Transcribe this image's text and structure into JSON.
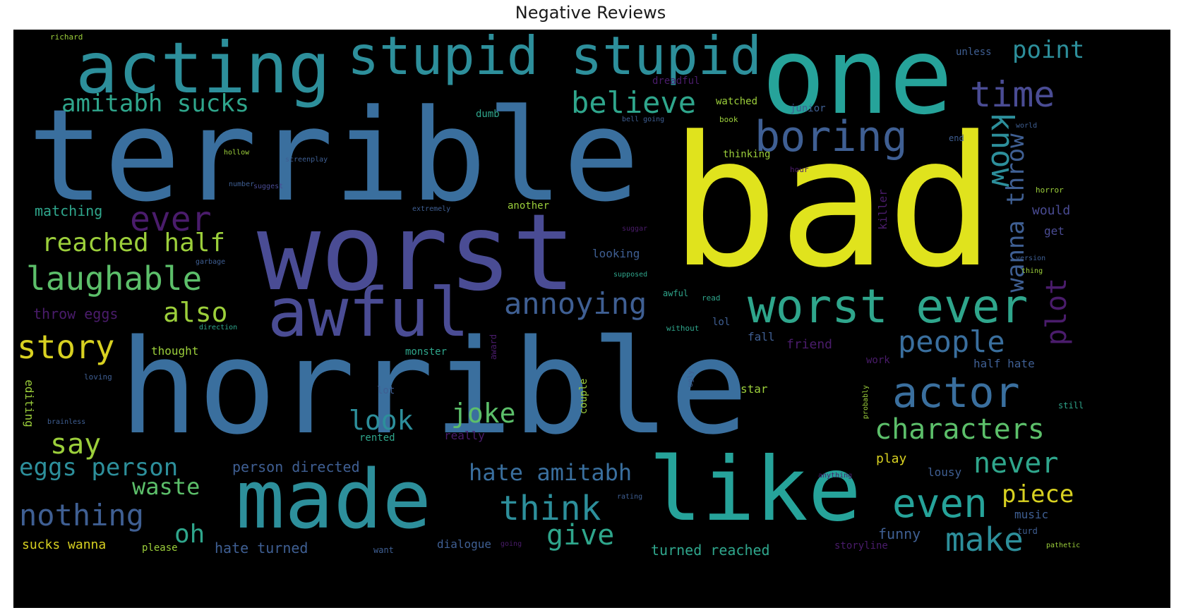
{
  "title": "Negative Reviews",
  "palette": {
    "background": "#000000",
    "yellow": "#e0e31d",
    "green": "#5cbf6a",
    "lime": "#9ccf3b",
    "teal": "#26a39a",
    "blue": "#3a6f9e",
    "steel": "#3f5f93",
    "indigo": "#4a4c94",
    "purple": "#4a1c6b"
  },
  "words": [
    {
      "text": "bad",
      "size": 255,
      "color": "#e0e31d",
      "rotate": 0
    },
    {
      "text": "terrible",
      "size": 180,
      "color": "#3a6f9e",
      "rotate": 0
    },
    {
      "text": "horrible",
      "size": 185,
      "color": "#3a6f9e",
      "rotate": 0
    },
    {
      "text": "worst",
      "size": 150,
      "color": "#4a4c94",
      "rotate": 0
    },
    {
      "text": "one",
      "size": 150,
      "color": "#26a39a",
      "rotate": 0
    },
    {
      "text": "made",
      "size": 115,
      "color": "#2d8f9b",
      "rotate": 0
    },
    {
      "text": "like",
      "size": 125,
      "color": "#26a39a",
      "rotate": 0
    },
    {
      "text": "acting",
      "size": 100,
      "color": "#2d8f9b",
      "rotate": 0
    },
    {
      "text": "stupid stupid",
      "size": 75,
      "color": "#2d8f9b",
      "rotate": 0
    },
    {
      "text": "awful",
      "size": 95,
      "color": "#4a4c94",
      "rotate": 0
    },
    {
      "text": "boring",
      "size": 60,
      "color": "#3f5f93",
      "rotate": 0
    },
    {
      "text": "worst ever",
      "size": 66,
      "color": "#2fa68c",
      "rotate": 0
    },
    {
      "text": "time",
      "size": 50,
      "color": "#4a4c94",
      "rotate": 0
    },
    {
      "text": "point",
      "size": 34,
      "color": "#2d8f9b",
      "rotate": 0
    },
    {
      "text": "believe",
      "size": 42,
      "color": "#2fa68c",
      "rotate": 0
    },
    {
      "text": "amitabh sucks",
      "size": 34,
      "color": "#2fa68c",
      "rotate": 0
    },
    {
      "text": "ever",
      "size": 48,
      "color": "#4a1c6b",
      "rotate": 0
    },
    {
      "text": "reached half",
      "size": 36,
      "color": "#9ccf3b",
      "rotate": 0
    },
    {
      "text": "laughable",
      "size": 46,
      "color": "#5cbf6a",
      "rotate": 0
    },
    {
      "text": "also",
      "size": 38,
      "color": "#9ccf3b",
      "rotate": 0
    },
    {
      "text": "annoying",
      "size": 42,
      "color": "#3f5f93",
      "rotate": 0
    },
    {
      "text": "story",
      "size": 46,
      "color": "#d8d121",
      "rotate": 0
    },
    {
      "text": "people",
      "size": 42,
      "color": "#3a6f9e",
      "rotate": 0
    },
    {
      "text": "actor",
      "size": 60,
      "color": "#3a6f9e",
      "rotate": 0
    },
    {
      "text": "characters",
      "size": 40,
      "color": "#5cbf6a",
      "rotate": 0
    },
    {
      "text": "never",
      "size": 40,
      "color": "#2fa68c",
      "rotate": 0
    },
    {
      "text": "even",
      "size": 56,
      "color": "#26a39a",
      "rotate": 0
    },
    {
      "text": "piece",
      "size": 34,
      "color": "#d8d121",
      "rotate": 0
    },
    {
      "text": "make",
      "size": 46,
      "color": "#2d8f9b",
      "rotate": 0
    },
    {
      "text": "look",
      "size": 38,
      "color": "#2d8f9b",
      "rotate": 0
    },
    {
      "text": "joke",
      "size": 38,
      "color": "#5cbf6a",
      "rotate": 0
    },
    {
      "text": "say",
      "size": 40,
      "color": "#9ccf3b",
      "rotate": 0
    },
    {
      "text": "eggs person",
      "size": 34,
      "color": "#2d8f9b",
      "rotate": 0
    },
    {
      "text": "waste",
      "size": 32,
      "color": "#5cbf6a",
      "rotate": 0
    },
    {
      "text": "nothing",
      "size": 42,
      "color": "#3f5f93",
      "rotate": 0
    },
    {
      "text": "think",
      "size": 48,
      "color": "#2d8f9b",
      "rotate": 0
    },
    {
      "text": "give",
      "size": 40,
      "color": "#2fa68c",
      "rotate": 0
    },
    {
      "text": "oh",
      "size": 36,
      "color": "#2fa68c",
      "rotate": 0
    },
    {
      "text": "hate amitabh",
      "size": 32,
      "color": "#3a6f9e",
      "rotate": 0
    },
    {
      "text": "know",
      "size": 44,
      "color": "#2d8f9b",
      "rotate": 90
    },
    {
      "text": "wanna throw",
      "size": 34,
      "color": "#3f5f93",
      "rotate": -90
    },
    {
      "text": "plot",
      "size": 40,
      "color": "#4a1c6b",
      "rotate": -90
    },
    {
      "text": "matching",
      "size": 20,
      "color": "#2fa68c",
      "rotate": 0
    },
    {
      "text": "throw eggs",
      "size": 20,
      "color": "#4a1c6b",
      "rotate": 0
    },
    {
      "text": "thought",
      "size": 16,
      "color": "#9ccf3b",
      "rotate": 0
    },
    {
      "text": "person directed",
      "size": 20,
      "color": "#3f5f93",
      "rotate": 0
    },
    {
      "text": "sucks wanna",
      "size": 18,
      "color": "#d8d121",
      "rotate": 0
    },
    {
      "text": "hate turned",
      "size": 20,
      "color": "#3f5f93",
      "rotate": 0
    },
    {
      "text": "turned reached",
      "size": 20,
      "color": "#2fa68c",
      "rotate": 0
    },
    {
      "text": "dialogue",
      "size": 16,
      "color": "#3f5f93",
      "rotate": 0
    },
    {
      "text": "funny",
      "size": 20,
      "color": "#3f5f93",
      "rotate": 0
    },
    {
      "text": "music",
      "size": 16,
      "color": "#3f5f93",
      "rotate": 0
    },
    {
      "text": "half hate",
      "size": 16,
      "color": "#3f5f93",
      "rotate": 0
    },
    {
      "text": "friend",
      "size": 18,
      "color": "#4a1c6b",
      "rotate": 0
    },
    {
      "text": "watched",
      "size": 14,
      "color": "#9ccf3b",
      "rotate": 0
    },
    {
      "text": "junior",
      "size": 14,
      "color": "#3f5f93",
      "rotate": 0
    },
    {
      "text": "thinking",
      "size": 14,
      "color": "#9ccf3b",
      "rotate": 0
    },
    {
      "text": "another",
      "size": 14,
      "color": "#9ccf3b",
      "rotate": 0
    },
    {
      "text": "would",
      "size": 18,
      "color": "#4a4c94",
      "rotate": 0
    },
    {
      "text": "unless",
      "size": 14,
      "color": "#3f5f93",
      "rotate": 0
    },
    {
      "text": "monster",
      "size": 14,
      "color": "#2fa68c",
      "rotate": 0
    },
    {
      "text": "editing",
      "size": 16,
      "color": "#9ccf3b",
      "rotate": 90
    },
    {
      "text": "killer",
      "size": 16,
      "color": "#4a1c6b",
      "rotate": -90
    },
    {
      "text": "couple",
      "size": 14,
      "color": "#9ccf3b",
      "rotate": -90
    },
    {
      "text": "rented",
      "size": 14,
      "color": "#2fa68c",
      "rotate": 0
    },
    {
      "text": "star",
      "size": 16,
      "color": "#9ccf3b",
      "rotate": 0
    },
    {
      "text": "play",
      "size": 18,
      "color": "#d8d121",
      "rotate": 0
    },
    {
      "text": "lousy",
      "size": 16,
      "color": "#3f5f93",
      "rotate": 0
    },
    {
      "text": "looking",
      "size": 16,
      "color": "#3f5f93",
      "rotate": 0
    },
    {
      "text": "really",
      "size": 16,
      "color": "#4a1c6b",
      "rotate": 0
    },
    {
      "text": "please",
      "size": 14,
      "color": "#9ccf3b",
      "rotate": 0
    },
    {
      "text": "lot",
      "size": 14,
      "color": "#3f5f93",
      "rotate": 0
    },
    {
      "text": "dumb",
      "size": 14,
      "color": "#2fa68c",
      "rotate": 0
    },
    {
      "text": "dreadful",
      "size": 14,
      "color": "#4a1c6b",
      "rotate": 0
    },
    {
      "text": "storyline",
      "size": 14,
      "color": "#4a1c6b",
      "rotate": 0
    },
    {
      "text": "work",
      "size": 14,
      "color": "#4a1c6b",
      "rotate": 0
    },
    {
      "text": "get",
      "size": 16,
      "color": "#4a4c94",
      "rotate": 0
    },
    {
      "text": "fall",
      "size": 16,
      "color": "#3f5f93",
      "rotate": 0
    },
    {
      "text": "richard",
      "size": 11,
      "color": "#9ccf3b",
      "rotate": 0
    },
    {
      "text": "want",
      "size": 12,
      "color": "#3f5f93",
      "rotate": 0
    },
    {
      "text": "turd",
      "size": 12,
      "color": "#3f5f93",
      "rotate": 0
    },
    {
      "text": "pathetic",
      "size": 10,
      "color": "#9ccf3b",
      "rotate": 0
    },
    {
      "text": "still",
      "size": 12,
      "color": "#2fa68c",
      "rotate": 0
    },
    {
      "text": "end",
      "size": 12,
      "color": "#3f5f93",
      "rotate": 0
    },
    {
      "text": "book",
      "size": 11,
      "color": "#9ccf3b",
      "rotate": 0
    },
    {
      "text": "hour",
      "size": 11,
      "color": "#4a1c6b",
      "rotate": 0
    },
    {
      "text": "horror",
      "size": 11,
      "color": "#9ccf3b",
      "rotate": 0
    },
    {
      "text": "version",
      "size": 10,
      "color": "#3f5f93",
      "rotate": 0
    },
    {
      "text": "thing",
      "size": 10,
      "color": "#9ccf3b",
      "rotate": 0
    },
    {
      "text": "world",
      "size": 10,
      "color": "#3f5f93",
      "rotate": 0
    },
    {
      "text": "read",
      "size": 11,
      "color": "#2fa68c",
      "rotate": 0
    },
    {
      "text": "without",
      "size": 11,
      "color": "#2fa68c",
      "rotate": 0
    },
    {
      "text": "lol",
      "size": 14,
      "color": "#3f5f93",
      "rotate": 0
    },
    {
      "text": "awful",
      "size": 12,
      "color": "#2fa68c",
      "rotate": 0
    },
    {
      "text": "anything",
      "size": 10,
      "color": "#4a1c6b",
      "rotate": 0
    },
    {
      "text": "probably",
      "size": 10,
      "color": "#9ccf3b",
      "rotate": -90
    },
    {
      "text": "rating",
      "size": 10,
      "color": "#3f5f93",
      "rotate": 0
    },
    {
      "text": "garbage",
      "size": 10,
      "color": "#3f5f93",
      "rotate": 0
    },
    {
      "text": "suggest",
      "size": 10,
      "color": "#4a4c94",
      "rotate": 0
    },
    {
      "text": "number",
      "size": 10,
      "color": "#3f5f93",
      "rotate": 0
    },
    {
      "text": "loving",
      "size": 11,
      "color": "#3f5f93",
      "rotate": 0
    },
    {
      "text": "bell going",
      "size": 10,
      "color": "#3f5f93",
      "rotate": 0
    },
    {
      "text": "extremely",
      "size": 10,
      "color": "#3f5f93",
      "rotate": 0
    },
    {
      "text": "going",
      "size": 10,
      "color": "#4a1c6b",
      "rotate": 0
    },
    {
      "text": "direction",
      "size": 10,
      "color": "#2fa68c",
      "rotate": 0
    },
    {
      "text": "hollow",
      "size": 10,
      "color": "#9ccf3b",
      "rotate": 0
    },
    {
      "text": "screenplay",
      "size": 10,
      "color": "#3f5f93",
      "rotate": 0
    },
    {
      "text": "brainless",
      "size": 10,
      "color": "#3f5f93",
      "rotate": 0
    },
    {
      "text": "ugly",
      "size": 10,
      "color": "#3f5f93",
      "rotate": -90
    },
    {
      "text": "award",
      "size": 12,
      "color": "#4a1c6b",
      "rotate": -90
    },
    {
      "text": "suggar",
      "size": 10,
      "color": "#4a1c6b",
      "rotate": 0
    },
    {
      "text": "supposed",
      "size": 10,
      "color": "#2fa68c",
      "rotate": 0
    }
  ]
}
